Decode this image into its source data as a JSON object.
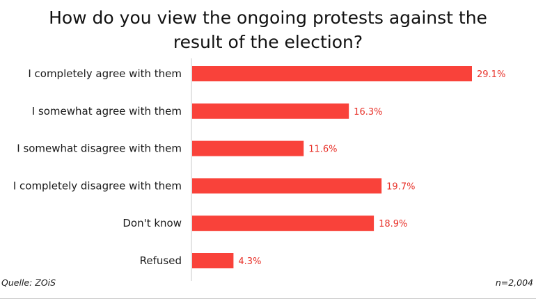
{
  "chart_data": {
    "type": "bar",
    "orientation": "horizontal",
    "title_lines": [
      "How do you view the ongoing protests against the",
      "result of the election?"
    ],
    "categories": [
      "I completely agree with them",
      "I somewhat agree with them",
      "I somewhat disagree with them",
      "I completely disagree with them",
      "Don't know",
      "Refused"
    ],
    "values": [
      29.1,
      16.3,
      11.6,
      19.7,
      18.9,
      4.3
    ],
    "value_labels": [
      "29.1%",
      "16.3%",
      "11.6%",
      "19.7%",
      "18.9%",
      "4.3%"
    ],
    "xlim": [
      0,
      29.1
    ],
    "grid": false,
    "legend": "none",
    "bar_color": "#f9423a",
    "label_color": "#e8322a"
  },
  "footer": {
    "source": "Quelle: ZOiS",
    "sample": "n=2,004"
  }
}
